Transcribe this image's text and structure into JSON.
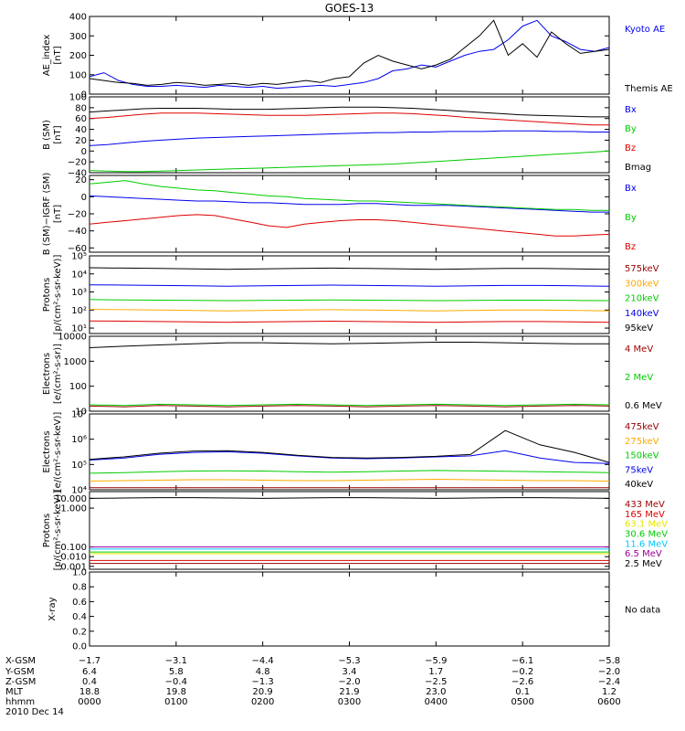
{
  "title": "GOES-13",
  "date": "2010 Dec 14",
  "colors": {
    "black": "#000000",
    "blue": "#0000ee",
    "red": "#dd0000",
    "green": "#00cc00",
    "orange": "#ffaa00",
    "cyan": "#00c8ff",
    "yellow": "#e6e600",
    "purple": "#990099",
    "darkred": "#990000"
  },
  "chart_data": [
    {
      "type": "line",
      "id": "ae",
      "ylabel": [
        "AE_index",
        "[nT]"
      ],
      "ylim": [
        0,
        400
      ],
      "yticks": [
        "400",
        "300",
        "200",
        "100",
        "0"
      ],
      "ytick_values": [
        400,
        300,
        200,
        100,
        0
      ],
      "series": [
        {
          "name": "Kyoto AE",
          "color": "blue",
          "values": [
            90,
            110,
            70,
            50,
            40,
            40,
            45,
            40,
            35,
            45,
            40,
            35,
            40,
            30,
            35,
            40,
            45,
            40,
            50,
            60,
            80,
            120,
            130,
            150,
            140,
            170,
            200,
            220,
            230,
            280,
            350,
            380,
            300,
            270,
            230,
            220,
            240
          ]
        },
        {
          "name": "Themis AE",
          "color": "black",
          "values": [
            80,
            70,
            60,
            55,
            45,
            50,
            60,
            55,
            45,
            50,
            55,
            45,
            55,
            50,
            60,
            70,
            60,
            80,
            90,
            160,
            200,
            170,
            150,
            130,
            150,
            180,
            240,
            300,
            380,
            200,
            260,
            190,
            320,
            260,
            210,
            220,
            230
          ]
        }
      ]
    },
    {
      "type": "line",
      "id": "bsm",
      "ylabel": [
        "B (SM)",
        "[nT]"
      ],
      "ylim": [
        -40,
        100
      ],
      "yticks": [
        "100",
        "80",
        "60",
        "40",
        "20",
        "0",
        "−20",
        "−40"
      ],
      "ytick_values": [
        100,
        80,
        60,
        40,
        20,
        0,
        -20,
        -40
      ],
      "series": [
        {
          "name": "Bx",
          "color": "blue",
          "values": [
            10,
            12,
            15,
            18,
            20,
            22,
            24,
            25,
            26,
            27,
            28,
            29,
            30,
            31,
            32,
            33,
            34,
            34,
            35,
            35,
            36,
            36,
            36,
            37,
            37,
            37,
            36,
            36,
            35,
            35
          ]
        },
        {
          "name": "By",
          "color": "green",
          "values": [
            -36,
            -37,
            -38,
            -38,
            -37,
            -36,
            -35,
            -34,
            -33,
            -32,
            -31,
            -30,
            -29,
            -28,
            -27,
            -26,
            -25,
            -24,
            -22,
            -20,
            -18,
            -16,
            -14,
            -12,
            -10,
            -8,
            -6,
            -4,
            -2,
            0
          ]
        },
        {
          "name": "Bz",
          "color": "red",
          "values": [
            60,
            62,
            65,
            68,
            70,
            70,
            70,
            69,
            68,
            67,
            66,
            66,
            66,
            67,
            68,
            69,
            70,
            70,
            69,
            67,
            65,
            62,
            60,
            58,
            56,
            54,
            52,
            50,
            48,
            48
          ]
        },
        {
          "name": "Bmag",
          "color": "black",
          "values": [
            72,
            74,
            76,
            78,
            79,
            79,
            79,
            78,
            77,
            77,
            77,
            78,
            79,
            80,
            81,
            81,
            81,
            80,
            79,
            77,
            75,
            73,
            71,
            69,
            67,
            66,
            65,
            64,
            63,
            63
          ]
        }
      ]
    },
    {
      "type": "line",
      "id": "bigrf",
      "ylabel": [
        "B (SM)−IGRF (SM)",
        "[nT]"
      ],
      "ylim": [
        -65,
        25
      ],
      "yticks": [
        "20",
        "0",
        "−20",
        "−40",
        "−60"
      ],
      "ytick_values": [
        20,
        0,
        -20,
        -40,
        -60
      ],
      "series": [
        {
          "name": "Bx",
          "color": "blue",
          "values": [
            1,
            0,
            -1,
            -2,
            -3,
            -4,
            -5,
            -5,
            -6,
            -7,
            -7,
            -8,
            -9,
            -9,
            -9,
            -8,
            -8,
            -9,
            -10,
            -10,
            -10,
            -11,
            -12,
            -13,
            -14,
            -15,
            -16,
            -17,
            -18,
            -18
          ]
        },
        {
          "name": "By",
          "color": "green",
          "values": [
            15,
            17,
            19,
            15,
            12,
            10,
            8,
            7,
            5,
            3,
            1,
            0,
            -2,
            -3,
            -4,
            -5,
            -5,
            -6,
            -7,
            -8,
            -9,
            -10,
            -11,
            -12,
            -13,
            -14,
            -15,
            -15,
            -16,
            -16
          ]
        },
        {
          "name": "Bz",
          "color": "red",
          "values": [
            -32,
            -30,
            -28,
            -26,
            -24,
            -22,
            -21,
            -22,
            -26,
            -30,
            -34,
            -36,
            -32,
            -30,
            -28,
            -27,
            -27,
            -28,
            -30,
            -32,
            -34,
            -36,
            -38,
            -40,
            -42,
            -44,
            -46,
            -46,
            -45,
            -44
          ]
        }
      ]
    },
    {
      "type": "line",
      "id": "protons1",
      "scale": "log",
      "ylabel": [
        "Protons",
        "[p/(cm²-s-sr-keV)]"
      ],
      "ylim": [
        5,
        100000
      ],
      "yticks": [
        "10⁵",
        "10⁴",
        "10³",
        "10²",
        "10¹"
      ],
      "ytick_values": [
        100000,
        10000,
        1000,
        100,
        10
      ],
      "series": [
        {
          "name": "575keV",
          "color": "darkred",
          "values": []
        },
        {
          "name": "300keV",
          "color": "orange",
          "values": [
            110,
            105,
            100,
            95,
            90,
            95,
            100,
            105,
            100,
            95,
            90,
            95,
            100,
            100,
            95,
            90
          ]
        },
        {
          "name": "210keV",
          "color": "green",
          "values": [
            380,
            360,
            350,
            340,
            330,
            340,
            350,
            360,
            350,
            340,
            330,
            340,
            350,
            350,
            340,
            330
          ]
        },
        {
          "name": "140keV",
          "color": "blue",
          "values": [
            2500,
            2400,
            2300,
            2200,
            2100,
            2200,
            2300,
            2400,
            2300,
            2200,
            2100,
            2200,
            2300,
            2300,
            2200,
            2100
          ]
        },
        {
          "name": "95keV",
          "color": "black",
          "values": [
            22000,
            21000,
            20000,
            19000,
            18000,
            19000,
            20000,
            21000,
            20000,
            19000,
            18000,
            19000,
            20000,
            20000,
            19000,
            18000
          ]
        },
        {
          "name": "",
          "color": "red",
          "values": [
            25,
            24,
            23,
            22,
            21,
            22,
            23,
            24,
            23,
            22,
            21,
            22,
            23,
            23,
            22,
            21
          ]
        }
      ]
    },
    {
      "type": "line",
      "id": "electrons1",
      "scale": "log",
      "ylabel": [
        "Electrons",
        "[e/(cm²-s-sr)]"
      ],
      "ylim": [
        10,
        10000
      ],
      "yticks": [
        "10000",
        "1000",
        "100",
        "10"
      ],
      "ytick_values": [
        10000,
        1000,
        100,
        10
      ],
      "series": [
        {
          "name": "4 MeV",
          "color": "darkred",
          "values": [
            16,
            15,
            17,
            16,
            15,
            16,
            17,
            16,
            15,
            16,
            17,
            16,
            15,
            16,
            17,
            16
          ]
        },
        {
          "name": "2 MeV",
          "color": "green",
          "values": [
            18,
            17,
            19,
            18,
            17,
            18,
            19,
            18,
            17,
            18,
            19,
            18,
            17,
            18,
            19,
            18
          ]
        },
        {
          "name": "0.6 MeV",
          "color": "black",
          "values": [
            3500,
            4000,
            4500,
            5000,
            5500,
            5500,
            5200,
            5000,
            5200,
            5500,
            5800,
            5800,
            5500,
            5200,
            5000,
            5000
          ]
        }
      ]
    },
    {
      "type": "line",
      "id": "electrons2",
      "scale": "log",
      "ylabel": [
        "Electrons",
        "[e/(cm²-s-sr-keV)]"
      ],
      "ylim": [
        10000,
        10000000
      ],
      "yticks": [
        "10⁷",
        "10⁶",
        "10⁵",
        "10⁴"
      ],
      "ytick_values": [
        10000000,
        1000000,
        100000,
        10000
      ],
      "series": [
        {
          "name": "475keV",
          "color": "darkred",
          "values": [
            12000,
            12000,
            12000,
            12000,
            12000,
            12000,
            12000,
            12000,
            12000,
            12000,
            12000,
            12000,
            12000,
            12000,
            12000,
            12000
          ]
        },
        {
          "name": "275keV",
          "color": "orange",
          "values": [
            22000,
            23000,
            24000,
            25000,
            25000,
            24000,
            23000,
            23000,
            24000,
            25000,
            26000,
            25000,
            24000,
            23000,
            23000,
            22000
          ]
        },
        {
          "name": "150keV",
          "color": "green",
          "values": [
            45000,
            48000,
            52000,
            55000,
            56000,
            55000,
            52000,
            50000,
            52000,
            55000,
            58000,
            56000,
            54000,
            52000,
            50000,
            48000
          ]
        },
        {
          "name": "75keV",
          "color": "blue",
          "values": [
            150000,
            180000,
            250000,
            300000,
            320000,
            280000,
            220000,
            180000,
            170000,
            180000,
            200000,
            220000,
            350000,
            180000,
            120000,
            110000
          ]
        },
        {
          "name": "40keV",
          "color": "black",
          "values": [
            160000,
            200000,
            280000,
            340000,
            350000,
            300000,
            230000,
            190000,
            180000,
            190000,
            210000,
            250000,
            2200000,
            600000,
            300000,
            120000
          ]
        }
      ]
    },
    {
      "type": "line",
      "id": "protons2",
      "scale": "log",
      "ylabel": [
        "Protons",
        "[p/(cm²-s-sr-keV)]"
      ],
      "ylim": [
        0.0005,
        50000
      ],
      "yticks": [
        "10.000",
        "1.000",
        "0.100",
        "0.010",
        "0.001"
      ],
      "ytick_values": [
        10000,
        1000,
        0.1,
        0.01,
        0.001
      ],
      "series": [
        {
          "name": "433 MeV",
          "color": "darkred",
          "values": [
            0.002,
            0.002,
            0.002,
            0.002,
            0.002,
            0.002,
            0.002,
            0.002,
            0.002,
            0.002,
            0.002,
            0.002,
            0.002,
            0.002,
            0.002,
            0.002
          ]
        },
        {
          "name": "165 MeV",
          "color": "red",
          "values": [
            0.004,
            0.004,
            0.004,
            0.004,
            0.004,
            0.004,
            0.004,
            0.004,
            0.004,
            0.004,
            0.004,
            0.004,
            0.004,
            0.004,
            0.004,
            0.004
          ]
        },
        {
          "name": "63.1 MeV",
          "color": "yellow",
          "values": [
            0.02,
            0.02,
            0.02,
            0.02,
            0.02,
            0.02,
            0.02,
            0.02,
            0.02,
            0.02,
            0.02,
            0.02,
            0.02,
            0.02,
            0.02,
            0.02
          ]
        },
        {
          "name": "30.6 MeV",
          "color": "green",
          "values": [
            0.03,
            0.03,
            0.03,
            0.03,
            0.03,
            0.03,
            0.03,
            0.03,
            0.03,
            0.03,
            0.03,
            0.03,
            0.03,
            0.03,
            0.03,
            0.03
          ]
        },
        {
          "name": "11.6 MeV",
          "color": "cyan",
          "values": [
            0.06,
            0.06,
            0.06,
            0.06,
            0.06,
            0.06,
            0.06,
            0.06,
            0.06,
            0.06,
            0.06,
            0.06,
            0.06,
            0.06,
            0.06,
            0.06
          ]
        },
        {
          "name": "6.5 MeV",
          "color": "purple",
          "values": [
            0.1,
            0.1,
            0.1,
            0.1,
            0.1,
            0.1,
            0.1,
            0.1,
            0.1,
            0.1,
            0.1,
            0.1,
            0.1,
            0.1,
            0.1,
            0.1
          ]
        },
        {
          "name": "2.5 MeV",
          "color": "black",
          "values": [
            10000,
            11000,
            12000,
            12000,
            11000,
            10000,
            11000,
            12000,
            12000,
            11000,
            10000,
            11000,
            12000,
            12000,
            11000,
            10000
          ]
        }
      ]
    },
    {
      "type": "line",
      "id": "xray",
      "ylabel": [
        "X-ray"
      ],
      "ylim": [
        0,
        1
      ],
      "yticks": [
        "1.0",
        "0.8",
        "0.6",
        "0.4",
        "0.2",
        "0.0"
      ],
      "ytick_values": [
        1,
        0.8,
        0.6,
        0.4,
        0.2,
        0
      ],
      "nodata": "No data",
      "series": []
    }
  ],
  "xaxis": {
    "rows": [
      {
        "label": "X-GSM",
        "values": [
          "−1.7",
          "−3.1",
          "−4.4",
          "−5.3",
          "−5.9",
          "−6.1",
          "−5.8"
        ]
      },
      {
        "label": "Y-GSM",
        "values": [
          "6.4",
          "5.8",
          "4.8",
          "3.4",
          "1.7",
          "−0.2",
          "−2.0"
        ]
      },
      {
        "label": "Z-GSM",
        "values": [
          "0.4",
          "−0.4",
          "−1.3",
          "−2.0",
          "−2.5",
          "−2.6",
          "−2.4"
        ]
      },
      {
        "label": "MLT",
        "values": [
          "18.8",
          "19.8",
          "20.9",
          "21.9",
          "23.0",
          "0.1",
          "1.2"
        ]
      },
      {
        "label": "hhmm",
        "values": [
          "0000",
          "0100",
          "0200",
          "0300",
          "0400",
          "0500",
          "0600"
        ]
      }
    ]
  }
}
